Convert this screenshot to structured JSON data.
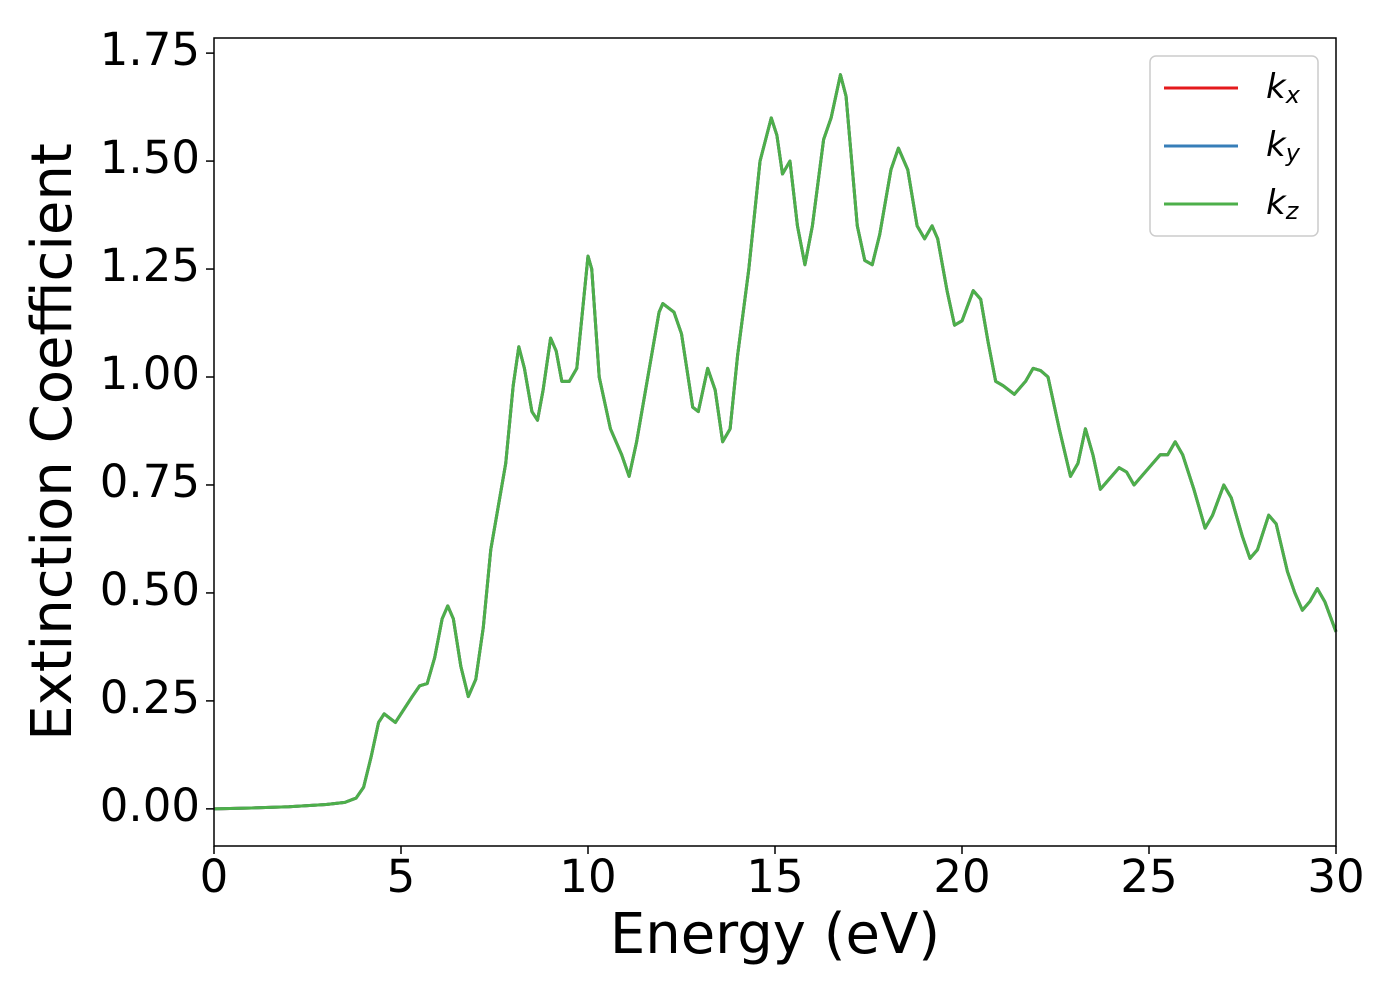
{
  "chart_data": {
    "type": "line",
    "xlabel": "Energy (eV)",
    "ylabel": "Extinction Coefficient",
    "x": [
      0,
      1,
      2,
      3,
      3.5,
      3.8,
      4.0,
      4.2,
      4.4,
      4.55,
      4.7,
      4.85,
      5.0,
      5.3,
      5.5,
      5.7,
      5.9,
      6.1,
      6.25,
      6.4,
      6.6,
      6.8,
      7.0,
      7.2,
      7.4,
      7.6,
      7.8,
      8.0,
      8.15,
      8.3,
      8.5,
      8.65,
      8.8,
      9.0,
      9.15,
      9.3,
      9.5,
      9.7,
      9.85,
      10.0,
      10.1,
      10.3,
      10.6,
      10.9,
      11.1,
      11.3,
      11.6,
      11.9,
      12.0,
      12.3,
      12.5,
      12.8,
      12.95,
      13.2,
      13.4,
      13.6,
      13.8,
      14.0,
      14.3,
      14.6,
      14.9,
      15.05,
      15.2,
      15.4,
      15.6,
      15.8,
      16.0,
      16.3,
      16.5,
      16.75,
      16.9,
      17.2,
      17.4,
      17.6,
      17.8,
      18.1,
      18.3,
      18.55,
      18.8,
      19.0,
      19.2,
      19.35,
      19.6,
      19.8,
      20.0,
      20.3,
      20.5,
      20.7,
      20.9,
      21.1,
      21.4,
      21.7,
      21.9,
      22.1,
      22.3,
      22.6,
      22.9,
      23.1,
      23.3,
      23.5,
      23.7,
      23.9,
      24.2,
      24.4,
      24.6,
      24.8,
      25.0,
      25.3,
      25.5,
      25.7,
      25.9,
      26.2,
      26.5,
      26.7,
      27.0,
      27.2,
      27.5,
      27.7,
      27.9,
      28.2,
      28.4,
      28.7,
      28.9,
      29.1,
      29.3,
      29.5,
      29.7,
      30.0
    ],
    "series": [
      {
        "name": "kx",
        "color": "#e41a1c",
        "values": [
          0,
          0.002,
          0.005,
          0.01,
          0.015,
          0.025,
          0.05,
          0.12,
          0.2,
          0.22,
          0.21,
          0.2,
          0.22,
          0.26,
          0.285,
          0.29,
          0.35,
          0.44,
          0.47,
          0.44,
          0.33,
          0.26,
          0.3,
          0.42,
          0.6,
          0.7,
          0.8,
          0.98,
          1.07,
          1.02,
          0.92,
          0.9,
          0.97,
          1.09,
          1.06,
          0.99,
          0.99,
          1.02,
          1.15,
          1.28,
          1.25,
          1.0,
          0.88,
          0.82,
          0.77,
          0.85,
          1.0,
          1.15,
          1.17,
          1.15,
          1.1,
          0.93,
          0.92,
          1.02,
          0.97,
          0.85,
          0.88,
          1.05,
          1.25,
          1.5,
          1.6,
          1.56,
          1.47,
          1.5,
          1.35,
          1.26,
          1.35,
          1.55,
          1.6,
          1.7,
          1.65,
          1.35,
          1.27,
          1.26,
          1.33,
          1.48,
          1.53,
          1.48,
          1.35,
          1.32,
          1.35,
          1.32,
          1.2,
          1.12,
          1.13,
          1.2,
          1.18,
          1.08,
          0.99,
          0.98,
          0.96,
          0.99,
          1.02,
          1.015,
          1.0,
          0.88,
          0.77,
          0.8,
          0.88,
          0.82,
          0.74,
          0.76,
          0.79,
          0.78,
          0.75,
          0.77,
          0.79,
          0.82,
          0.82,
          0.85,
          0.82,
          0.74,
          0.65,
          0.68,
          0.75,
          0.72,
          0.63,
          0.58,
          0.6,
          0.68,
          0.66,
          0.55,
          0.5,
          0.46,
          0.48,
          0.51,
          0.48,
          0.41
        ]
      },
      {
        "name": "ky",
        "color": "#377eb8",
        "values": [
          0,
          0.002,
          0.005,
          0.01,
          0.015,
          0.025,
          0.05,
          0.12,
          0.2,
          0.22,
          0.21,
          0.2,
          0.22,
          0.26,
          0.285,
          0.29,
          0.35,
          0.44,
          0.47,
          0.44,
          0.33,
          0.26,
          0.3,
          0.42,
          0.6,
          0.7,
          0.8,
          0.98,
          1.07,
          1.02,
          0.92,
          0.9,
          0.97,
          1.09,
          1.06,
          0.99,
          0.99,
          1.02,
          1.15,
          1.28,
          1.25,
          1.0,
          0.88,
          0.82,
          0.77,
          0.85,
          1.0,
          1.15,
          1.17,
          1.15,
          1.1,
          0.93,
          0.92,
          1.02,
          0.97,
          0.85,
          0.88,
          1.05,
          1.25,
          1.5,
          1.6,
          1.56,
          1.47,
          1.5,
          1.35,
          1.26,
          1.35,
          1.55,
          1.6,
          1.7,
          1.65,
          1.35,
          1.27,
          1.26,
          1.33,
          1.48,
          1.53,
          1.48,
          1.35,
          1.32,
          1.35,
          1.32,
          1.2,
          1.12,
          1.13,
          1.2,
          1.18,
          1.08,
          0.99,
          0.98,
          0.96,
          0.99,
          1.02,
          1.015,
          1.0,
          0.88,
          0.77,
          0.8,
          0.88,
          0.82,
          0.74,
          0.76,
          0.79,
          0.78,
          0.75,
          0.77,
          0.79,
          0.82,
          0.82,
          0.85,
          0.82,
          0.74,
          0.65,
          0.68,
          0.75,
          0.72,
          0.63,
          0.58,
          0.6,
          0.68,
          0.66,
          0.55,
          0.5,
          0.46,
          0.48,
          0.51,
          0.48,
          0.41
        ]
      },
      {
        "name": "kz",
        "color": "#4daf4a",
        "values": [
          0,
          0.002,
          0.005,
          0.01,
          0.015,
          0.025,
          0.05,
          0.12,
          0.2,
          0.22,
          0.21,
          0.2,
          0.22,
          0.26,
          0.285,
          0.29,
          0.35,
          0.44,
          0.47,
          0.44,
          0.33,
          0.26,
          0.3,
          0.42,
          0.6,
          0.7,
          0.8,
          0.98,
          1.07,
          1.02,
          0.92,
          0.9,
          0.97,
          1.09,
          1.06,
          0.99,
          0.99,
          1.02,
          1.15,
          1.28,
          1.25,
          1.0,
          0.88,
          0.82,
          0.77,
          0.85,
          1.0,
          1.15,
          1.17,
          1.15,
          1.1,
          0.93,
          0.92,
          1.02,
          0.97,
          0.85,
          0.88,
          1.05,
          1.25,
          1.5,
          1.6,
          1.56,
          1.47,
          1.5,
          1.35,
          1.26,
          1.35,
          1.55,
          1.6,
          1.7,
          1.65,
          1.35,
          1.27,
          1.26,
          1.33,
          1.48,
          1.53,
          1.48,
          1.35,
          1.32,
          1.35,
          1.32,
          1.2,
          1.12,
          1.13,
          1.2,
          1.18,
          1.08,
          0.99,
          0.98,
          0.96,
          0.99,
          1.02,
          1.015,
          1.0,
          0.88,
          0.77,
          0.8,
          0.88,
          0.82,
          0.74,
          0.76,
          0.79,
          0.78,
          0.75,
          0.77,
          0.79,
          0.82,
          0.82,
          0.85,
          0.82,
          0.74,
          0.65,
          0.68,
          0.75,
          0.72,
          0.63,
          0.58,
          0.6,
          0.68,
          0.66,
          0.55,
          0.5,
          0.46,
          0.48,
          0.51,
          0.48,
          0.41
        ]
      }
    ],
    "xlim": [
      0,
      30
    ],
    "ylim": [
      -0.086,
      1.785
    ],
    "xticks": [
      0,
      5,
      10,
      15,
      20,
      25,
      30
    ],
    "yticks": [
      {
        "value": 0,
        "label": "0.00"
      },
      {
        "value": 0.25,
        "label": "0.25"
      },
      {
        "value": 0.5,
        "label": "0.50"
      },
      {
        "value": 0.75,
        "label": "0.75"
      },
      {
        "value": 1,
        "label": "1.00"
      },
      {
        "value": 1.25,
        "label": "1.25"
      },
      {
        "value": 1.5,
        "label": "1.50"
      },
      {
        "value": 1.75,
        "label": "1.75"
      }
    ],
    "grid": false,
    "legend": "upper right"
  }
}
